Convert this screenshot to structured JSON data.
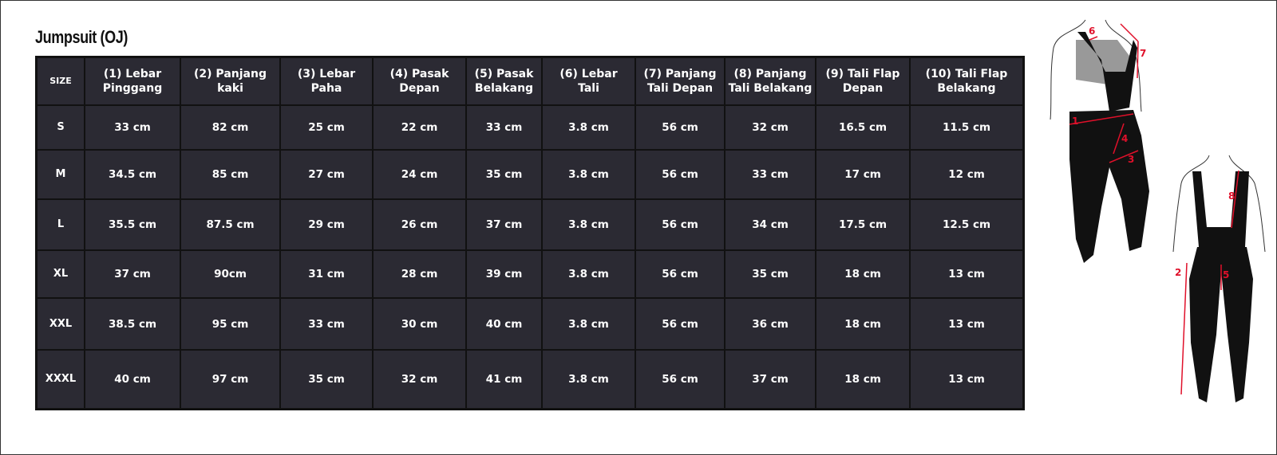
{
  "title": "Jumpsuit (OJ)",
  "table": {
    "headers": [
      "SIZE",
      "(1) Lebar\nPinggang",
      "(2) Panjang\nkaki",
      "(3) Lebar\nPaha",
      "(4) Pasak\nDepan",
      "(5) Pasak\nBelakang",
      "(6) Lebar\nTali",
      "(7) Panjang\nTali Depan",
      "(8) Panjang\nTali Belakang",
      "(9) Tali Flap\nDepan",
      "(10) Tali Flap\nBelakang"
    ],
    "rows": [
      [
        "S",
        "33 cm",
        "82 cm",
        "25 cm",
        "22 cm",
        "33 cm",
        "3.8 cm",
        "56 cm",
        "32 cm",
        "16.5 cm",
        "11.5 cm"
      ],
      [
        "M",
        "34.5 cm",
        "85 cm",
        "27 cm",
        "24 cm",
        "35 cm",
        "3.8 cm",
        "56 cm",
        "33 cm",
        "17 cm",
        "12 cm"
      ],
      [
        "L",
        "35.5 cm",
        "87.5 cm",
        "29 cm",
        "26 cm",
        "37 cm",
        "3.8 cm",
        "56 cm",
        "34 cm",
        "17.5 cm",
        "12.5 cm"
      ],
      [
        "XL",
        "37 cm",
        "90cm",
        "31 cm",
        "28 cm",
        "39 cm",
        "3.8 cm",
        "56 cm",
        "35 cm",
        "18 cm",
        "13 cm"
      ],
      [
        "XXL",
        "38.5 cm",
        "95 cm",
        "33 cm",
        "30 cm",
        "40 cm",
        "3.8 cm",
        "56 cm",
        "36 cm",
        "18 cm",
        "13 cm"
      ],
      [
        "XXXL",
        "40 cm",
        "97 cm",
        "35 cm",
        "32 cm",
        "41 cm",
        "3.8 cm",
        "56 cm",
        "37 cm",
        "18 cm",
        "13 cm"
      ]
    ]
  },
  "illustration": {
    "labels": [
      "1",
      "2",
      "3",
      "4",
      "5",
      "6",
      "7",
      "8"
    ],
    "accent_color": "#e0102a",
    "table_bg": "#2b2a33"
  }
}
